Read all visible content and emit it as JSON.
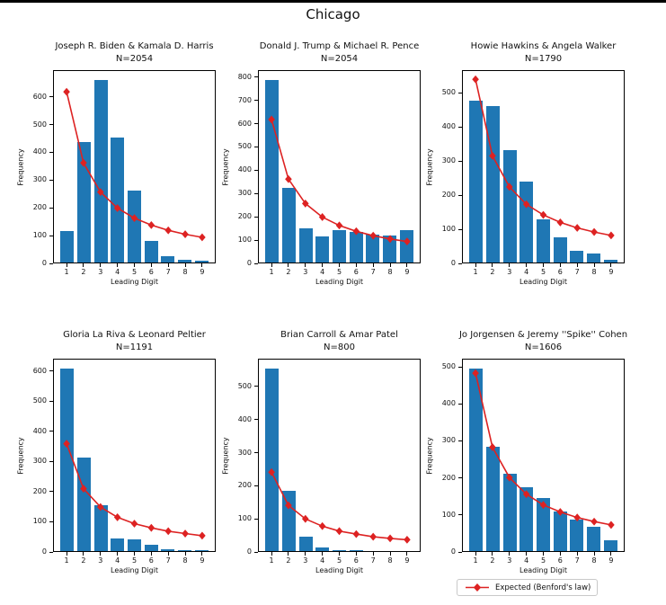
{
  "figure": {
    "suptitle": "Chicago"
  },
  "legend": {
    "label": "Expected (Benford's law)"
  },
  "colors": {
    "bar": "#1f77b4",
    "line": "#dd2222",
    "axis": "#000000"
  },
  "chart_data": [
    {
      "type": "bar",
      "title": "Joseph R. Biden & Kamala D. Harris",
      "n_label": "N=2054",
      "xlabel": "Leading Digit",
      "ylabel": "Frequency",
      "categories": [
        1,
        2,
        3,
        4,
        5,
        6,
        7,
        8,
        9
      ],
      "bars": [
        113,
        438,
        663,
        453,
        262,
        80,
        23,
        11,
        5
      ],
      "series": [
        {
          "name": "Expected (Benford's law)",
          "values": [
            618,
            362,
            257,
            199,
            163,
            138,
            119,
            105,
            94
          ]
        }
      ],
      "yticks": [
        0,
        100,
        200,
        300,
        400,
        500,
        600
      ],
      "ylim": [
        0,
        696
      ],
      "grid": false
    },
    {
      "type": "bar",
      "title": "Donald J. Trump & Michael R. Pence",
      "n_label": "N=2054",
      "xlabel": "Leading Digit",
      "ylabel": "Frequency",
      "categories": [
        1,
        2,
        3,
        4,
        5,
        6,
        7,
        8,
        9
      ],
      "bars": [
        790,
        323,
        150,
        114,
        142,
        131,
        121,
        118,
        139
      ],
      "series": [
        {
          "name": "Expected (Benford's law)",
          "values": [
            618,
            362,
            257,
            199,
            163,
            138,
            119,
            105,
            94
          ]
        }
      ],
      "yticks": [
        0,
        100,
        200,
        300,
        400,
        500,
        600,
        700,
        800
      ],
      "ylim": [
        0,
        830
      ],
      "grid": false
    },
    {
      "type": "bar",
      "title": "Howie Hawkins & Angela Walker",
      "n_label": "N=1790",
      "xlabel": "Leading Digit",
      "ylabel": "Frequency",
      "categories": [
        1,
        2,
        3,
        4,
        5,
        6,
        7,
        8,
        9
      ],
      "bars": [
        478,
        462,
        331,
        240,
        128,
        74,
        35,
        27,
        8
      ],
      "series": [
        {
          "name": "Expected (Benford's law)",
          "values": [
            539,
            315,
            224,
            173,
            142,
            120,
            104,
            92,
            82
          ]
        }
      ],
      "yticks": [
        0,
        100,
        200,
        300,
        400,
        500
      ],
      "ylim": [
        0,
        566
      ],
      "grid": false
    },
    {
      "type": "bar",
      "title": "Gloria La Riva & Leonard Peltier",
      "n_label": "N=1191",
      "xlabel": "Leading Digit",
      "ylabel": "Frequency",
      "categories": [
        1,
        2,
        3,
        4,
        5,
        6,
        7,
        8,
        9
      ],
      "bars": [
        610,
        312,
        155,
        43,
        38,
        22,
        5,
        2,
        2
      ],
      "series": [
        {
          "name": "Expected (Benford's law)",
          "values": [
            359,
            210,
            149,
            115,
            94,
            80,
            69,
            61,
            54
          ]
        }
      ],
      "yticks": [
        0,
        100,
        200,
        300,
        400,
        500,
        600
      ],
      "ylim": [
        0,
        641
      ],
      "grid": false
    },
    {
      "type": "bar",
      "title": "Brian Carroll & Amar Patel",
      "n_label": "N=800",
      "xlabel": "Leading Digit",
      "ylabel": "Frequency",
      "categories": [
        1,
        2,
        3,
        4,
        5,
        6,
        7,
        8,
        9
      ],
      "bars": [
        557,
        185,
        44,
        10,
        3,
        1,
        0,
        0,
        0
      ],
      "series": [
        {
          "name": "Expected (Benford's law)",
          "values": [
            241,
            141,
            100,
            78,
            63,
            54,
            46,
            41,
            37
          ]
        }
      ],
      "yticks": [
        0,
        100,
        200,
        300,
        400,
        500
      ],
      "ylim": [
        0,
        584
      ],
      "grid": false
    },
    {
      "type": "bar",
      "title": "Jo Jorgensen & Jeremy ''Spike'' Cohen",
      "n_label": "N=1606",
      "xlabel": "Leading Digit",
      "ylabel": "Frequency",
      "categories": [
        1,
        2,
        3,
        4,
        5,
        6,
        7,
        8,
        9
      ],
      "bars": [
        497,
        285,
        211,
        174,
        144,
        107,
        85,
        67,
        30
      ],
      "series": [
        {
          "name": "Expected (Benford's law)",
          "values": [
            483,
            283,
            201,
            156,
            127,
            108,
            93,
            82,
            73
          ]
        }
      ],
      "yticks": [
        0,
        100,
        200,
        300,
        400,
        500
      ],
      "ylim": [
        0,
        522
      ],
      "grid": false
    }
  ]
}
